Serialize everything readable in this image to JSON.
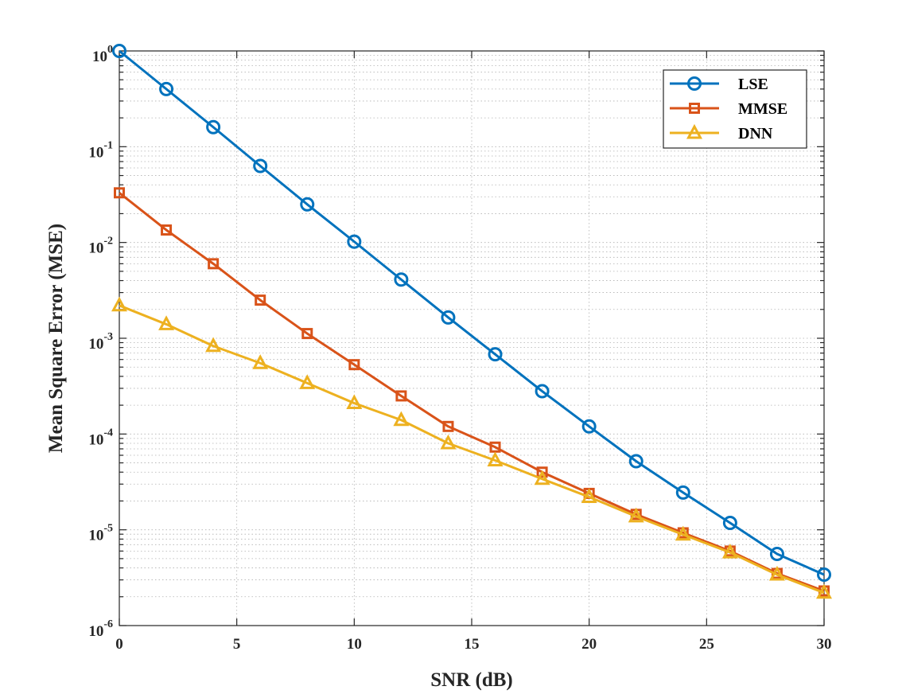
{
  "chart_data": {
    "type": "line",
    "title": "",
    "xlabel": "SNR (dB)",
    "ylabel": "Mean Square Error (MSE)",
    "xlim": [
      0,
      30
    ],
    "ylim": [
      1e-06,
      1
    ],
    "yscale": "log",
    "grid": true,
    "grid_style": "dotted, with minor log gridlines",
    "legend_position": "top-right",
    "x_ticks": [
      0,
      5,
      10,
      15,
      20,
      25,
      30
    ],
    "x_tick_labels": [
      "0",
      "5",
      "10",
      "15",
      "20",
      "25",
      "30"
    ],
    "y_ticks": [
      {
        "value": 1.0,
        "base": "10",
        "exp": "0"
      },
      {
        "value": 0.1,
        "base": "10",
        "exp": "-1"
      },
      {
        "value": 0.01,
        "base": "10",
        "exp": "-2"
      },
      {
        "value": 0.001,
        "base": "10",
        "exp": "-3"
      },
      {
        "value": 0.0001,
        "base": "10",
        "exp": "-4"
      },
      {
        "value": 1e-05,
        "base": "10",
        "exp": "-5"
      },
      {
        "value": 1e-06,
        "base": "10",
        "exp": "-6"
      }
    ],
    "x": [
      0,
      2,
      4,
      6,
      8,
      10,
      12,
      14,
      16,
      18,
      20,
      22,
      24,
      26,
      28,
      30
    ],
    "series": [
      {
        "name": "LSE",
        "color": "#0072BD",
        "marker": "circle",
        "values": [
          1.0,
          0.4,
          0.16,
          0.063,
          0.025,
          0.0102,
          0.0041,
          0.00165,
          0.00068,
          0.00028,
          0.00012,
          5.2e-05,
          2.45e-05,
          1.18e-05,
          5.6e-06,
          3.4e-06
        ]
      },
      {
        "name": "MMSE",
        "color": "#D95319",
        "marker": "square",
        "values": [
          0.033,
          0.0135,
          0.006,
          0.0025,
          0.00112,
          0.00053,
          0.00025,
          0.00012,
          7.3e-05,
          4e-05,
          2.4e-05,
          1.45e-05,
          9.3e-06,
          6e-06,
          3.5e-06,
          2.3e-06
        ]
      },
      {
        "name": "DNN",
        "color": "#EDB120",
        "marker": "triangle",
        "values": [
          0.0022,
          0.0014,
          0.00083,
          0.00055,
          0.00034,
          0.00021,
          0.00014,
          8e-05,
          5.3e-05,
          3.4e-05,
          2.2e-05,
          1.38e-05,
          8.9e-06,
          5.8e-06,
          3.4e-06,
          2.2e-06
        ]
      }
    ]
  }
}
